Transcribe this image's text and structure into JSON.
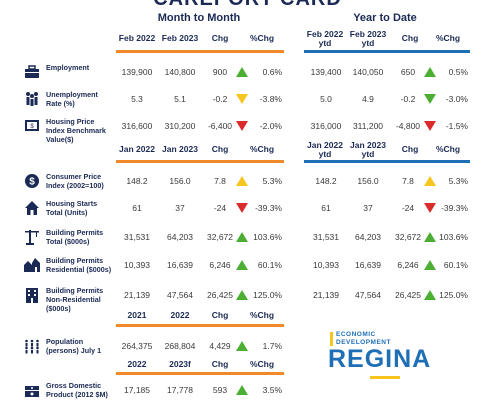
{
  "title": "CAREPORT CARD",
  "sections": {
    "month": "Month to Month",
    "year": "Year to Date"
  },
  "header1": {
    "left": [
      "Feb 2022",
      "Feb 2023",
      "Chg",
      "%Chg"
    ],
    "right": [
      "Feb 2022 ytd",
      "Feb 2023 ytd",
      "Chg",
      "%Chg"
    ]
  },
  "header2": {
    "left": [
      "Jan 2022",
      "Jan 2023",
      "Chg",
      "%Chg"
    ],
    "right": [
      "Jan 2022 ytd",
      "Jan 2023 ytd",
      "Chg",
      "%Chg"
    ]
  },
  "header3": {
    "left": [
      "2021",
      "2022",
      "Chg",
      "%Chg"
    ]
  },
  "header4": {
    "left": [
      "2022",
      "2023f",
      "Chg",
      "%Chg"
    ]
  },
  "rows": [
    {
      "label": "Employment",
      "icon": "briefcase-icon",
      "m": [
        "139,900",
        "140,800",
        "900",
        "0.6%"
      ],
      "m_arrow": "up-green",
      "y": [
        "139,400",
        "140,050",
        "650",
        "0.5%"
      ],
      "y_arrow": "up-green"
    },
    {
      "label": "Unemployment Rate (%)",
      "icon": "people-icon",
      "m": [
        "5.3",
        "5.1",
        "-0.2",
        "-3.8%"
      ],
      "m_arrow": "down-yellow",
      "y": [
        "5.0",
        "4.9",
        "-0.2",
        "-3.0%"
      ],
      "y_arrow": "down-green"
    },
    {
      "label": "Housing Price Index Benchmark Value($)",
      "icon": "price-tag-icon",
      "m": [
        "316,600",
        "310,200",
        "-6,400",
        "-2.0%"
      ],
      "m_arrow": "down-red",
      "y": [
        "316,000",
        "311,200",
        "-4,800",
        "-1.5%"
      ],
      "y_arrow": "down-red"
    },
    {
      "label": "Consumer Price Index (2002=100)",
      "icon": "dollar-icon",
      "m": [
        "148.2",
        "156.0",
        "7.8",
        "5.3%"
      ],
      "m_arrow": "up-yellow",
      "y": [
        "148.2",
        "156.0",
        "7.8",
        "5.3%"
      ],
      "y_arrow": "up-yellow"
    },
    {
      "label": "Housing Starts Total (Units)",
      "icon": "house-icon",
      "m": [
        "61",
        "37",
        "-24",
        "-39.3%"
      ],
      "m_arrow": "down-red",
      "y": [
        "61",
        "37",
        "-24",
        "-39.3%"
      ],
      "y_arrow": "down-red"
    },
    {
      "label": "Building Permits Total ($000s)",
      "icon": "crane-icon",
      "m": [
        "31,531",
        "64,203",
        "32,672",
        "103.6%"
      ],
      "m_arrow": "up-green",
      "y": [
        "31,531",
        "64,203",
        "32,672",
        "103.6%"
      ],
      "y_arrow": "up-green"
    },
    {
      "label": "Building Permits Residential ($000s)",
      "icon": "homes-icon",
      "m": [
        "10,393",
        "16,639",
        "6,246",
        "60.1%"
      ],
      "m_arrow": "up-green",
      "y": [
        "10,393",
        "16,639",
        "6,246",
        "60.1%"
      ],
      "y_arrow": "up-green"
    },
    {
      "label": "Building Permits Non-Residential ($000s)",
      "icon": "office-building-icon",
      "m": [
        "21,139",
        "47,564",
        "26,425",
        "125.0%"
      ],
      "m_arrow": "up-green",
      "y": [
        "21,139",
        "47,564",
        "26,425",
        "125.0%"
      ],
      "y_arrow": "up-green"
    },
    {
      "label": "Population (persons) July 1",
      "icon": "population-icon",
      "m": [
        "264,375",
        "268,804",
        "4,429",
        "1.7%"
      ],
      "m_arrow": "up-green"
    },
    {
      "label": "Gross Domestic Product (2012 $M)",
      "icon": "money-stack-icon",
      "m": [
        "17,185",
        "17,778",
        "593",
        "3.5%"
      ],
      "m_arrow": "up-green"
    }
  ],
  "logo": {
    "line1": "ECONOMIC",
    "line2": "DEVELOPMENT",
    "word": "REGINA"
  },
  "colors": {
    "navy": "#1b2a55",
    "orange": "#f0892a",
    "blue": "#1e6fb5",
    "green": "#4caf33",
    "red": "#d92b2b",
    "yellow": "#f7c51e"
  }
}
